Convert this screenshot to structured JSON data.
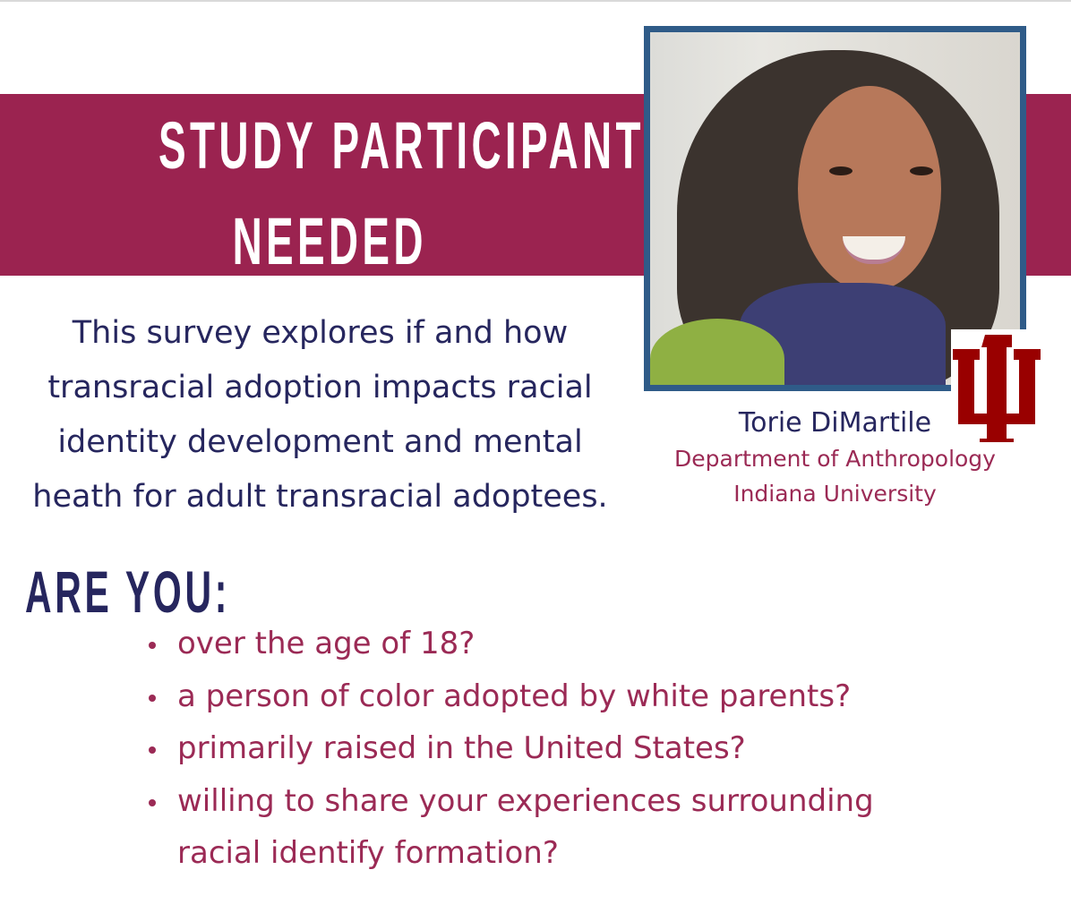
{
  "header": {
    "title_line1": "STUDY PARTICIPANTS",
    "title_line2": "NEEDED"
  },
  "description": "This survey explores if and how transracial adoption impacts racial identity development and mental heath for adult transracial adoptees.",
  "researcher": {
    "name": "Torie DiMartile",
    "department": "Department of Anthropology",
    "institution": "Indiana University",
    "photo": "researcher-portrait",
    "logo": "IU trident logo"
  },
  "eligibility": {
    "heading": "ARE YOU:",
    "items": [
      "over the age of 18?",
      "a person of color adopted by white parents?",
      "primarily raised in the United States?",
      "willing to share your experiences surrounding racial identify formation?"
    ]
  },
  "colors": {
    "band": "#9b2350",
    "navy": "#26265e",
    "maroon": "#9b2a55",
    "frame": "#2f5b88",
    "logo": "#990000"
  }
}
